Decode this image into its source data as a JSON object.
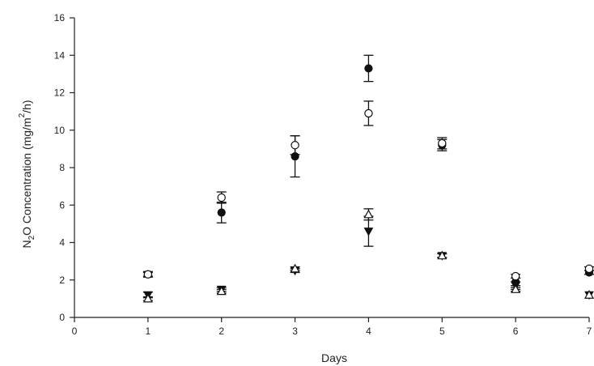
{
  "chart_data": {
    "type": "scatter",
    "xlabel": "Days",
    "ylabel": {
      "parts": [
        "N",
        "2",
        "O Concentration (mg/m",
        "2",
        "/h)"
      ]
    },
    "xlim": [
      0,
      7
    ],
    "ylim": [
      0,
      16
    ],
    "x_ticks": [
      0,
      1,
      2,
      3,
      4,
      5,
      6,
      7
    ],
    "y_ticks": [
      0,
      2,
      4,
      6,
      8,
      10,
      12,
      14,
      16
    ],
    "grid": false,
    "legend": "none",
    "series": [
      {
        "marker": "filled-circle",
        "points": [
          {
            "x": 1,
            "y": 2.3,
            "err": 0.15
          },
          {
            "x": 2,
            "y": 5.6,
            "err": 0.55
          },
          {
            "x": 3,
            "y": 8.6,
            "err": 1.1
          },
          {
            "x": 4,
            "y": 13.3,
            "err": 0.7
          },
          {
            "x": 5,
            "y": 9.2,
            "err": 0.3
          },
          {
            "x": 6,
            "y": 1.9,
            "err": 0.2
          },
          {
            "x": 7,
            "y": 2.4,
            "err": 0.1
          }
        ]
      },
      {
        "marker": "open-circle",
        "points": [
          {
            "x": 1,
            "y": 2.3,
            "err": 0.1
          },
          {
            "x": 2,
            "y": 6.4,
            "err": 0.3
          },
          {
            "x": 3,
            "y": 9.2,
            "err": 0.5
          },
          {
            "x": 4,
            "y": 10.9,
            "err": 0.65
          },
          {
            "x": 5,
            "y": 9.3,
            "err": 0.3
          },
          {
            "x": 6,
            "y": 2.2,
            "err": 0.1
          },
          {
            "x": 7,
            "y": 2.6,
            "err": 0.1
          }
        ]
      },
      {
        "marker": "filled-triangle-down",
        "points": [
          {
            "x": 1,
            "y": 1.2,
            "err": 0.15
          },
          {
            "x": 2,
            "y": 1.5,
            "err": 0.1
          },
          {
            "x": 3,
            "y": 2.5,
            "err": 0.1
          },
          {
            "x": 4,
            "y": 4.6,
            "err": 0.8
          },
          {
            "x": 5,
            "y": 3.3,
            "err": 0.1
          },
          {
            "x": 6,
            "y": 1.7,
            "err": 0.2
          },
          {
            "x": 7,
            "y": 1.2,
            "err": 0.05
          }
        ]
      },
      {
        "marker": "open-triangle-up",
        "points": [
          {
            "x": 1,
            "y": 1.0,
            "err": 0.1
          },
          {
            "x": 2,
            "y": 1.4,
            "err": 0.1
          },
          {
            "x": 3,
            "y": 2.6,
            "err": 0.1
          },
          {
            "x": 4,
            "y": 5.5,
            "err": 0.3
          },
          {
            "x": 5,
            "y": 3.3,
            "err": 0.1
          },
          {
            "x": 6,
            "y": 1.5,
            "err": 0.1
          },
          {
            "x": 7,
            "y": 1.2,
            "err": 0.05
          }
        ]
      }
    ]
  }
}
